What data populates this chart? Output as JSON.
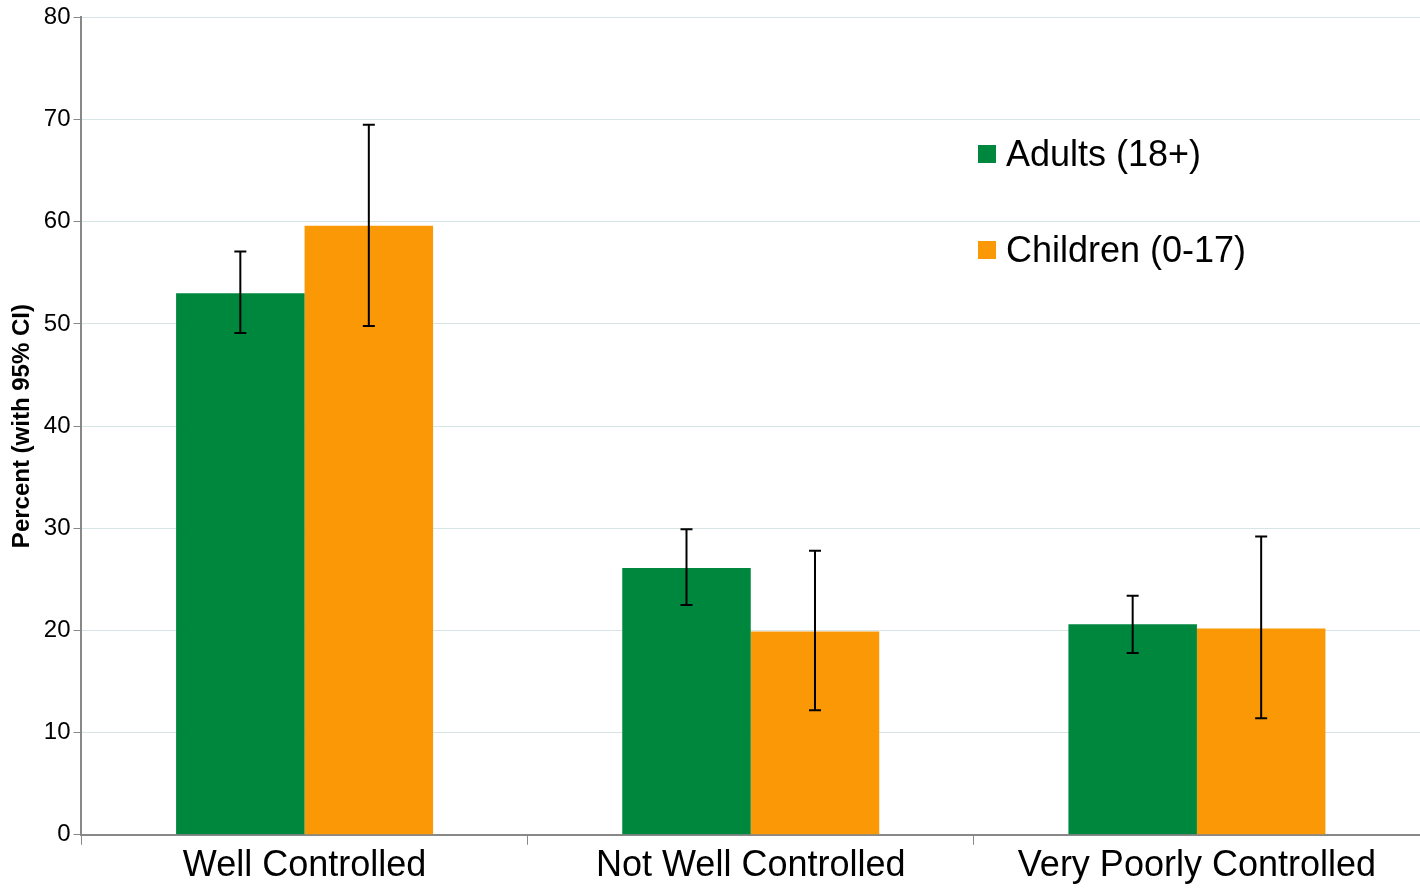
{
  "chart_data": {
    "type": "bar",
    "ylabel": "Percent (with 95% CI)",
    "categories": [
      "Well Controlled",
      "Not Well Controlled",
      "Very Poorly Controlled"
    ],
    "series": [
      {
        "name": "Adults (18+)",
        "color": "#00873e",
        "values": [
          53.0,
          26.1,
          20.6
        ],
        "errors": [
          [
            49.1,
            57.1
          ],
          [
            22.5,
            29.9
          ],
          [
            17.8,
            23.4
          ]
        ]
      },
      {
        "name": "Children (0-17)",
        "color": "#fa9805",
        "values": [
          59.6,
          19.9,
          20.2
        ],
        "errors": [
          [
            49.8,
            69.5
          ],
          [
            12.2,
            27.8
          ],
          [
            11.4,
            29.2
          ]
        ]
      }
    ],
    "ylim": [
      0,
      80
    ],
    "yticks": [
      0,
      10,
      20,
      30,
      40,
      50,
      60,
      70,
      80
    ],
    "grid": "y",
    "legend": "top right"
  }
}
